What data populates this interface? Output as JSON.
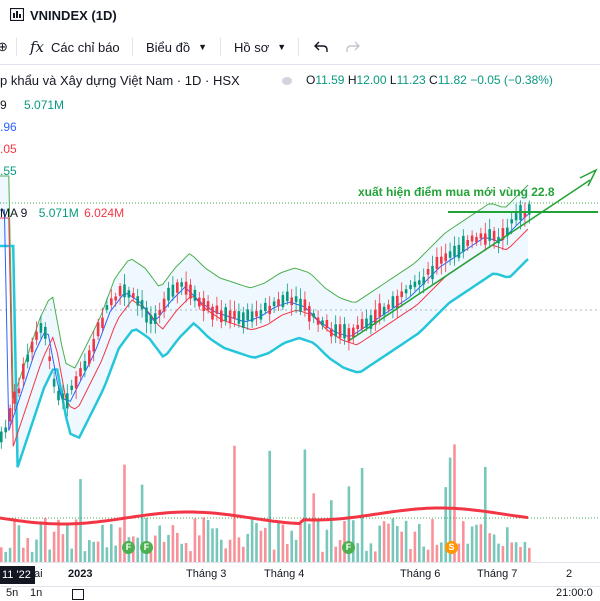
{
  "window": {
    "title": "VNINDEX (1D)"
  },
  "toolbar": {
    "indicators_label": "Các chỉ báo",
    "chart_type_label": "Biểu đồ",
    "profile_label": "Hồ sơ"
  },
  "legend": {
    "symbol_line": "p khẩu và Xây dựng Việt Nam · 1D · HSX",
    "o_label": "O",
    "o_value": "11.59",
    "h_label": "H",
    "h_value": "12.00",
    "l_label": "L",
    "l_value": "11.23",
    "c_label": "C",
    "c_value": "11.82",
    "change": "−0.05 (−0.38%)"
  },
  "indicators": {
    "vol_prefix": "9",
    "vol_value": "5.071M",
    "bb_upper": ".96",
    "bb_mid": ".05",
    "bb_lower": ".55",
    "vma_label": "MA 9",
    "vma_value1": "5.071M",
    "vma_value2": "6.024M"
  },
  "annotation": {
    "text": "xuất hiện điểm mua mới vùng 22.8"
  },
  "xaxis": {
    "current_label": "11 '22",
    "labels": [
      "ai",
      "2023",
      "Tháng 3",
      "Tháng 4",
      "Tháng 6",
      "Tháng 7",
      "2"
    ]
  },
  "markers": [
    "F",
    "F",
    "F",
    "S"
  ],
  "bottom": {
    "left1": "5n",
    "left2": "1n",
    "right": "21:00:0"
  },
  "colors": {
    "up": "#089981",
    "down": "#f23645",
    "ma_red": "#f23645",
    "ma_blue": "#2962ff",
    "bb_green": "#4caf50",
    "bb_cyan": "#26c6da",
    "annotation": "#22a337"
  }
}
